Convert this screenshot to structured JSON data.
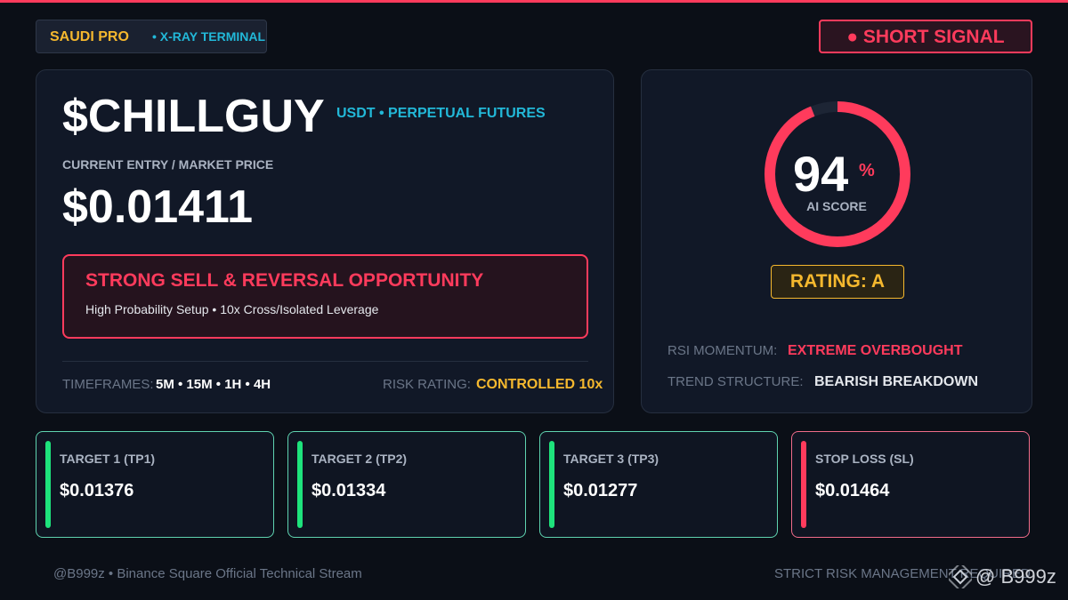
{
  "header": {
    "brand": "SAUDI PRO",
    "subtitle": "• X-RAY TERMINAL",
    "signal": "● SHORT SIGNAL"
  },
  "asset": {
    "ticker": "$CHILLGUY",
    "market": "USDT • PERPETUAL FUTURES",
    "price_label": "CURRENT ENTRY / MARKET PRICE",
    "price": "$0.01411"
  },
  "alert": {
    "title": "STRONG SELL & REVERSAL OPPORTUNITY",
    "detail": "High Probability Setup • 10x Cross/Isolated Leverage"
  },
  "meta": {
    "timeframes_label": "TIMEFRAMES:",
    "timeframes": "5M • 15M • 1H • 4H",
    "risk_label": "RISK RATING:",
    "risk": "CONTROLLED 10x"
  },
  "score": {
    "value": 94,
    "unit": "%",
    "label": "AI SCORE",
    "rating": "RATING: A"
  },
  "indicators": [
    {
      "label": "RSI MOMENTUM:",
      "value": "EXTREME OVERBOUGHT"
    },
    {
      "label": "TREND STRUCTURE:",
      "value": "BEARISH BREAKDOWN"
    }
  ],
  "targets": [
    {
      "label": "TARGET 1 (TP1)",
      "price": "$0.01376"
    },
    {
      "label": "TARGET 2 (TP2)",
      "price": "$0.01334"
    },
    {
      "label": "TARGET 3 (TP3)",
      "price": "$0.01277"
    },
    {
      "label": "STOP LOSS (SL)",
      "price": "$0.01464"
    }
  ],
  "footer": {
    "left": "@B999z • Binance Square Official Technical Stream",
    "right": "STRICT RISK MANAGEMENT REQUIRED",
    "watermark": "@ B999z"
  }
}
